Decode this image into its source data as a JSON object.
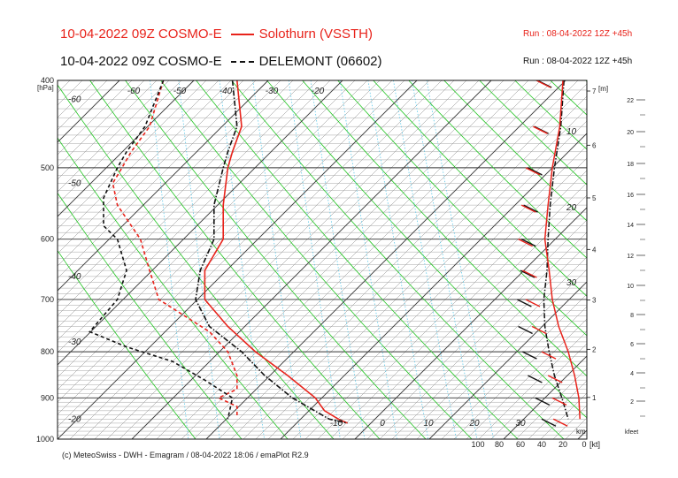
{
  "header": {
    "title1_date_model": "10-04-2022 09Z COSMO-E",
    "title1_station": "Solothurn (VSSTH)",
    "run1": "Run : 08-04-2022 12Z +45h",
    "title2_date_model": "10-04-2022 09Z COSMO-E",
    "title2_station": "DELEMONT (06602)",
    "run2": "Run : 08-04-2022 12Z +45h"
  },
  "footer": "(c) MeteoSwiss - DWH - Emagram / 08-04-2022 18:06 / emaPlot R2.9",
  "colors": {
    "solothurn": "#e8231b",
    "delemont": "#111111",
    "dry_adiabat": "#22c522",
    "mixing_ratio": "#5cc8e8",
    "isotherm": "#333333"
  },
  "chart_data": {
    "type": "line",
    "diagram": "emagram",
    "y_axis": {
      "label": "[hPa]",
      "scale": "log",
      "range": [
        400,
        1000
      ],
      "ticks": [
        "400",
        "500",
        "600",
        "700",
        "800",
        "900",
        "1000"
      ]
    },
    "x_axis": {
      "range": [
        -70,
        45
      ],
      "ticks": [
        "-10",
        "0",
        "10",
        "20",
        "30"
      ],
      "top_labels": [
        "-60",
        "-50",
        "-40",
        "-30",
        "-20"
      ],
      "slanted_labels": [
        "-60",
        "-50",
        "-40",
        "-30",
        "-20",
        "-60",
        "-50",
        "-40",
        "-30",
        "-20"
      ]
    },
    "km_axis": {
      "unit": "[m]",
      "corner_label": "km",
      "ticks": [
        "7",
        "6",
        "5",
        "4",
        "3",
        "2",
        "1"
      ]
    },
    "kfeet_axis": {
      "label": "kfeet",
      "ticks": [
        "22",
        "20",
        "18",
        "16",
        "14",
        "12",
        "10",
        "8",
        "6",
        "4",
        "2"
      ]
    },
    "wind_axis": {
      "unit": "[kt]",
      "ticks": [
        "100",
        "80",
        "60",
        "40",
        "20",
        "0"
      ]
    },
    "mixing_ratio_labels": [
      "10",
      "20",
      "30"
    ],
    "series": [
      {
        "name": "Solothurn (VSSTH)",
        "temperature": [
          [
            400,
            -31
          ],
          [
            450,
            -30
          ],
          [
            480,
            -32
          ],
          [
            500,
            -33
          ],
          [
            550,
            -34
          ],
          [
            600,
            -34
          ],
          [
            650,
            -38
          ],
          [
            690,
            -38
          ],
          [
            700,
            -38
          ],
          [
            750,
            -33
          ],
          [
            800,
            -27
          ],
          [
            850,
            -20
          ],
          [
            900,
            -14
          ],
          [
            930,
            -12
          ],
          [
            950,
            -9
          ],
          [
            960,
            -7
          ]
        ],
        "dewpoint": [
          [
            400,
            -47
          ],
          [
            450,
            -50
          ],
          [
            480,
            -54
          ],
          [
            500,
            -56
          ],
          [
            520,
            -58
          ],
          [
            550,
            -57
          ],
          [
            600,
            -52
          ],
          [
            650,
            -50
          ],
          [
            700,
            -48
          ],
          [
            760,
            -37
          ],
          [
            800,
            -33
          ],
          [
            850,
            -31
          ],
          [
            880,
            -31
          ],
          [
            900,
            -35
          ],
          [
            920,
            -31
          ],
          [
            945,
            -31
          ]
        ],
        "wind_speed": [
          [
            400,
            20
          ],
          [
            450,
            23
          ],
          [
            500,
            30
          ],
          [
            550,
            34
          ],
          [
            600,
            37
          ],
          [
            650,
            33
          ],
          [
            700,
            30
          ],
          [
            750,
            24
          ],
          [
            800,
            15
          ],
          [
            850,
            9
          ],
          [
            900,
            5
          ],
          [
            950,
            4
          ]
        ]
      },
      {
        "name": "DELEMONT (06602)",
        "temperature": [
          [
            400,
            -32
          ],
          [
            450,
            -31
          ],
          [
            480,
            -33
          ],
          [
            500,
            -34
          ],
          [
            550,
            -36
          ],
          [
            600,
            -36
          ],
          [
            650,
            -39
          ],
          [
            700,
            -40
          ],
          [
            750,
            -37
          ],
          [
            800,
            -30
          ],
          [
            850,
            -25
          ],
          [
            900,
            -19
          ],
          [
            950,
            -11
          ],
          [
            960,
            -7
          ]
        ],
        "dewpoint": [
          [
            400,
            -47
          ],
          [
            450,
            -51
          ],
          [
            480,
            -55
          ],
          [
            500,
            -57
          ],
          [
            540,
            -60
          ],
          [
            580,
            -60
          ],
          [
            600,
            -57
          ],
          [
            650,
            -55
          ],
          [
            700,
            -57
          ],
          [
            760,
            -63
          ],
          [
            790,
            -55
          ],
          [
            820,
            -45
          ],
          [
            860,
            -38
          ],
          [
            900,
            -32
          ],
          [
            950,
            -33
          ]
        ],
        "wind_speed": [
          [
            400,
            19
          ],
          [
            450,
            22
          ],
          [
            500,
            28
          ],
          [
            550,
            32
          ],
          [
            600,
            34
          ],
          [
            650,
            35
          ],
          [
            700,
            38
          ],
          [
            750,
            37
          ],
          [
            800,
            33
          ],
          [
            850,
            28
          ],
          [
            900,
            21
          ],
          [
            950,
            15
          ]
        ]
      }
    ]
  }
}
